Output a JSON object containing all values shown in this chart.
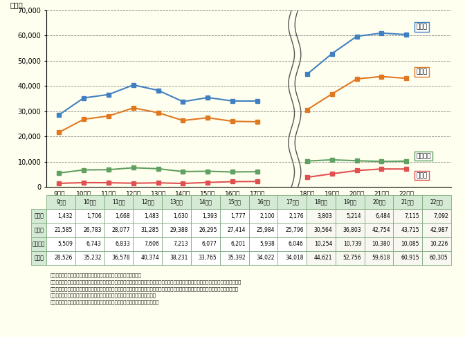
{
  "ylabel": "（件）",
  "years_left": [
    "9年度",
    "10年度",
    "11年度",
    "12年度",
    "13年度",
    "14年度",
    "15年度",
    "16年度",
    "17年度"
  ],
  "years_right": [
    "18年度",
    "19年度",
    "20年度",
    "21年度",
    "22年度"
  ],
  "shogakko_left": [
    1432,
    1706,
    1668,
    1483,
    1630,
    1393,
    1777,
    2100,
    2176
  ],
  "shogakko_right": [
    3803,
    5214,
    6484,
    7115,
    7092
  ],
  "chugakko_left": [
    21585,
    26783,
    28077,
    31285,
    29388,
    26295,
    27414,
    25984,
    25796
  ],
  "chugakko_right": [
    30564,
    36803,
    42754,
    43715,
    42987
  ],
  "kotogakko_left": [
    5509,
    6743,
    6833,
    7606,
    7213,
    6077,
    6201,
    5938,
    6046
  ],
  "kotogakko_right": [
    10254,
    10739,
    10380,
    10085,
    10226
  ],
  "gokei_left": [
    28526,
    35232,
    36578,
    40374,
    38231,
    33765,
    35392,
    34022,
    34018
  ],
  "gokei_right": [
    44621,
    52756,
    59618,
    60915,
    60305
  ],
  "color_shogakko": "#e05050",
  "color_chugakko": "#e07820",
  "color_kotogakko": "#60a060",
  "color_gokei": "#4080c0",
  "ylim": [
    0,
    70000
  ],
  "yticks": [
    0,
    10000,
    20000,
    30000,
    40000,
    50000,
    60000,
    70000
  ],
  "bg_color": "#fffff0",
  "table_header_bg": "#d4ead4",
  "legend_labels": [
    "合　計",
    "中学校",
    "高等学校",
    "小学校"
  ],
  "row_labels": [
    "小学校",
    "中学校",
    "高等学校",
    "合　計"
  ],
  "note1": "（注１）　平成８年度から，公立学校に加え，国・私立学校も調査。",
  "note2a": "（注２）　暴力行為を「自校の児童生徒が，故意に有形力（目に見える物理的な力）を加える行為」として調査。なお，本調査においては，「当",
  "note2b": "　　　　該暴力行為によって怗我や外傷があるかないかといったことや，怗我による病院の診断書，被害者による警察への被害届の有無にかか",
  "note2c": "　　　　わらず」暴力行為に該当するものをすべて対象とすることとしている。",
  "source": "（出典）　文部科学省「児童生徒の問題行動等生徒指導上の諸問題に関する調査」"
}
